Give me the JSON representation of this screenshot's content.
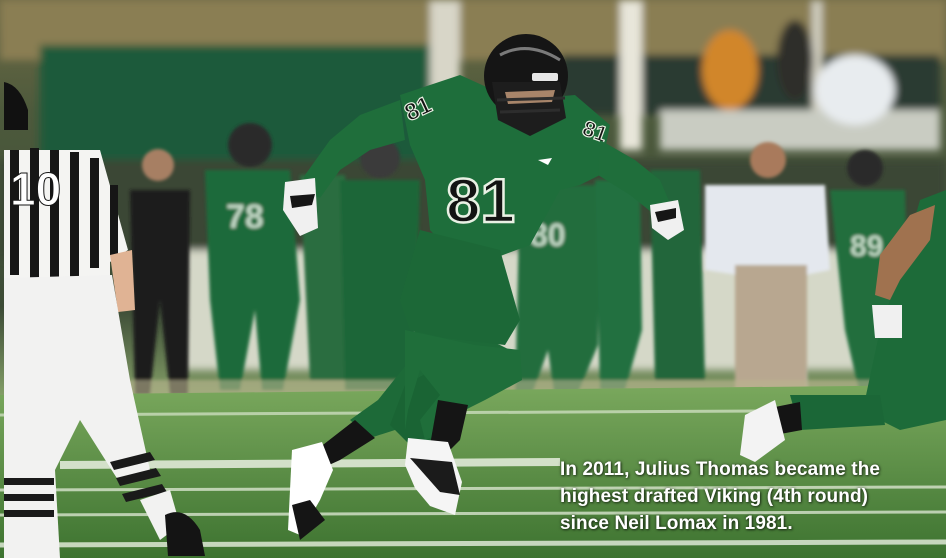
{
  "photo": {
    "subject": "football-player-running",
    "player_jersey_number": "81",
    "background_jerseys": [
      "78",
      "80",
      "89"
    ],
    "referee_jersey_fragment": "10",
    "team_colors": {
      "primary": "#1c6a3a",
      "secondary": "#ffffff",
      "helmet": "#111111"
    },
    "field_color": "#3f7a33"
  },
  "caption": {
    "line1": "In 2011, Julius Thomas became the",
    "line2": "highest drafted Viking (4th round)",
    "line3": "since Neil Lomax in 1981."
  }
}
